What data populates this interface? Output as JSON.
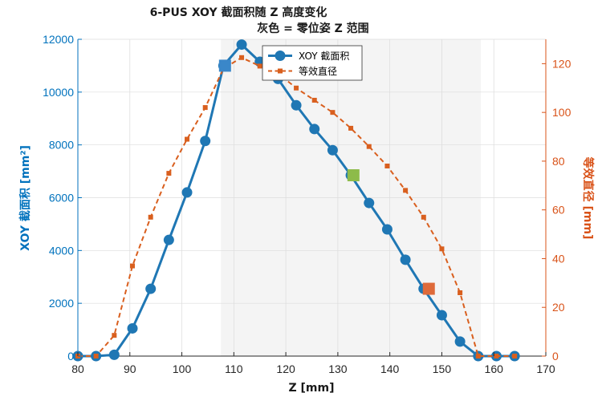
{
  "chart_data": {
    "type": "line",
    "title": "6-PUS XOY 截面积随 Z 高度变化",
    "subtitle": "灰色 = 零位姿 Z 范围",
    "xlabel": "Z [mm]",
    "ylabel_left": "XOY 截面积 [mm²]",
    "ylabel_right": "等效直径 [mm]",
    "xlim": [
      80,
      170
    ],
    "ylim_left": [
      0,
      12000
    ],
    "ylim_right": [
      0,
      130
    ],
    "x_ticks": [
      80,
      90,
      100,
      110,
      120,
      130,
      140,
      150,
      160,
      170
    ],
    "y_left_ticks": [
      0,
      2000,
      4000,
      6000,
      8000,
      10000,
      12000
    ],
    "y_right_ticks": [
      0,
      20,
      40,
      60,
      80,
      100,
      120
    ],
    "grid": true,
    "legend_position": "top-center",
    "shaded_region": {
      "x_range": [
        107.5,
        157.5
      ],
      "color": "#f4f4f4"
    },
    "series": [
      {
        "name": "XOY 截面积",
        "axis": "left",
        "color": "#1f77b4",
        "style": "solid",
        "marker": "circle",
        "x": [
          80,
          83.5,
          87,
          90.5,
          94,
          97.5,
          101,
          104.5,
          108,
          111.5,
          115,
          118.5,
          122,
          125.5,
          129,
          132.5,
          136,
          139.5,
          143,
          146.5,
          150,
          153.5,
          157,
          160.5,
          164
        ],
        "y": [
          0,
          0,
          50,
          1050,
          2550,
          4400,
          6200,
          8150,
          11000,
          11800,
          11150,
          10500,
          9500,
          8600,
          7800,
          6850,
          5800,
          4800,
          3650,
          2550,
          1550,
          550,
          0,
          0,
          0
        ]
      },
      {
        "name": "等效直径",
        "axis": "right",
        "color": "#d95f1e",
        "style": "dashed",
        "marker": "square",
        "x": [
          80,
          83.5,
          87,
          90.5,
          94,
          97.5,
          101,
          104.5,
          108,
          111.5,
          115,
          118.5,
          122,
          125.5,
          129,
          132.5,
          136,
          139.5,
          143,
          146.5,
          150,
          153.5,
          157,
          160.5,
          164
        ],
        "y": [
          0,
          0,
          8.5,
          37,
          57,
          75,
          89,
          102,
          118,
          122.5,
          119,
          116,
          110,
          105,
          100,
          93.5,
          86,
          78,
          68,
          57,
          44,
          26,
          0,
          0,
          0
        ]
      }
    ],
    "highlight_markers": [
      {
        "x": 108.3,
        "y": 11000,
        "axis": "left",
        "color": "#3a87c9",
        "shape": "square"
      },
      {
        "x": 133,
        "y": 6850,
        "axis": "left",
        "color": "#8dbb4a",
        "shape": "square"
      },
      {
        "x": 147.5,
        "y": 2550,
        "axis": "left",
        "color": "#de6a3a",
        "shape": "square"
      }
    ]
  }
}
